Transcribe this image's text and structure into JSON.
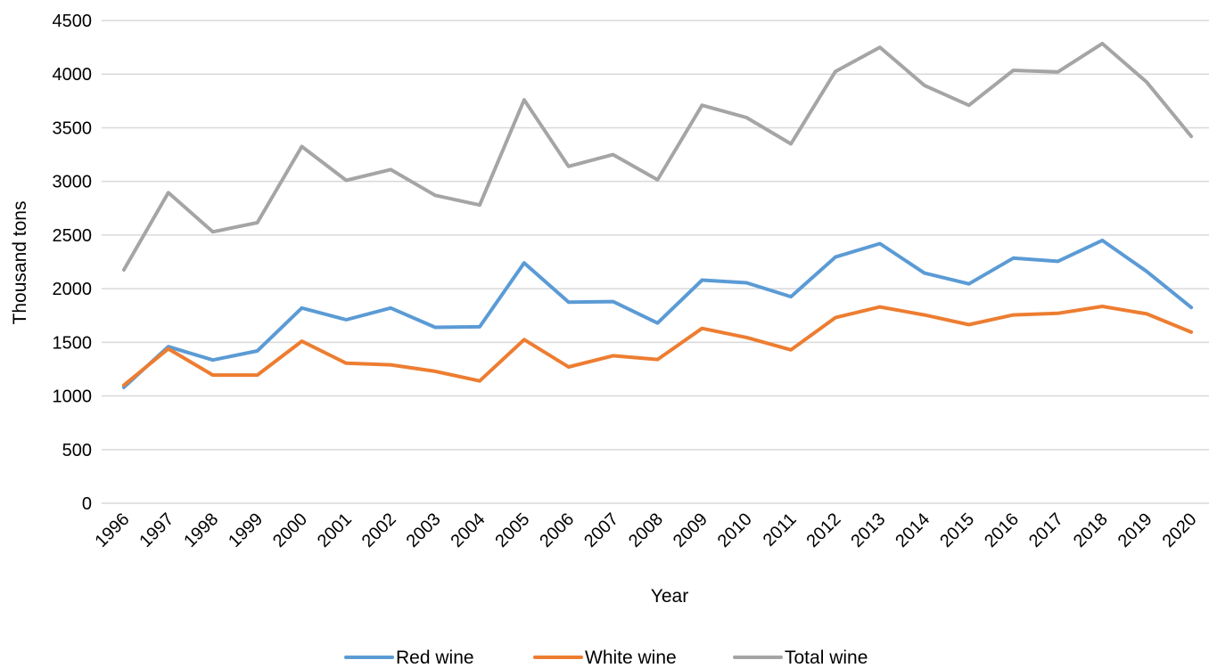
{
  "chart_data": {
    "type": "line",
    "title": "",
    "xlabel": "Year",
    "ylabel": "Thousand tons",
    "ylim": [
      0,
      4500
    ],
    "ytick_step": 500,
    "grid": "horizontal",
    "legend": "bottom",
    "categories": [
      "1996",
      "1997",
      "1998",
      "1999",
      "2000",
      "2001",
      "2002",
      "2003",
      "2004",
      "2005",
      "2006",
      "2007",
      "2008",
      "2009",
      "2010",
      "2011",
      "2012",
      "2013",
      "2014",
      "2015",
      "2016",
      "2017",
      "2018",
      "2019",
      "2020"
    ],
    "series": [
      {
        "name": "Red wine",
        "color": "#5b9bd5",
        "values": [
          1080,
          1460,
          1335,
          1420,
          1820,
          1710,
          1820,
          1640,
          1645,
          2240,
          1875,
          1880,
          1680,
          2080,
          2055,
          1925,
          2295,
          2420,
          2145,
          2045,
          2285,
          2255,
          2450,
          2160,
          1825
        ]
      },
      {
        "name": "White wine",
        "color": "#ed7d31",
        "values": [
          1100,
          1440,
          1195,
          1195,
          1510,
          1305,
          1290,
          1230,
          1140,
          1525,
          1270,
          1375,
          1340,
          1630,
          1545,
          1430,
          1730,
          1830,
          1755,
          1665,
          1755,
          1770,
          1835,
          1765,
          1595
        ]
      },
      {
        "name": "Total wine",
        "color": "#a5a5a5",
        "values": [
          2175,
          2895,
          2530,
          2615,
          3325,
          3010,
          3110,
          2870,
          2780,
          3760,
          3140,
          3250,
          3015,
          3710,
          3595,
          3350,
          4025,
          4250,
          3895,
          3710,
          4035,
          4020,
          4285,
          3925,
          3420
        ]
      }
    ]
  }
}
